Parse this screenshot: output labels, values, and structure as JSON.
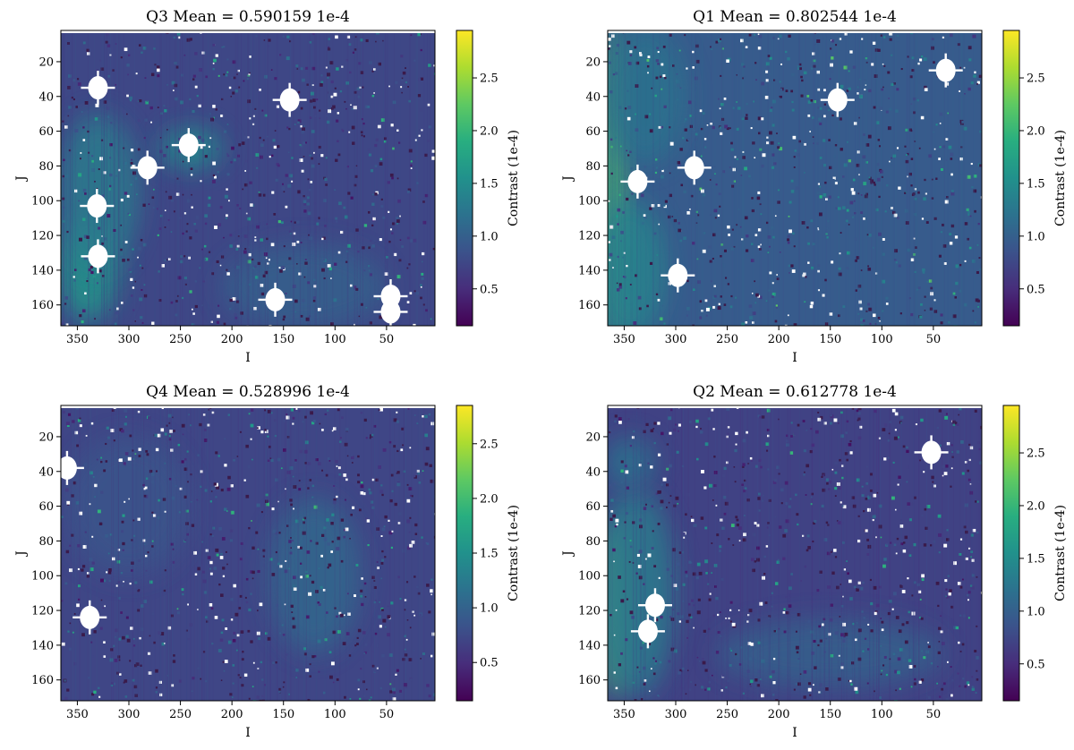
{
  "colormap": [
    "#440154",
    "#472d7b",
    "#3b528b",
    "#2c728e",
    "#21918c",
    "#28ae80",
    "#5ec962",
    "#addc30",
    "#fde725"
  ],
  "chart_data": [
    {
      "type": "heatmap",
      "title": "Q3 Mean = 0.590159 1e-4",
      "xlabel": "I",
      "ylabel": "J",
      "xlim": [
        366,
        3
      ],
      "ylim": [
        172,
        2
      ],
      "xticks": [
        350,
        300,
        250,
        200,
        150,
        100,
        50
      ],
      "yticks": [
        20,
        40,
        60,
        80,
        100,
        120,
        140,
        160
      ],
      "colorbar": {
        "label": "Contrast (1e-4)",
        "range": [
          0.15,
          2.95
        ],
        "ticks": [
          0.5,
          1.0,
          1.5,
          2.0,
          2.5
        ]
      },
      "mean": 0.590159,
      "background_level": 0.75,
      "bright_regions": [
        {
          "i": 340,
          "j": 140,
          "ri": 30,
          "rj": 30,
          "level": 1.6
        },
        {
          "i": 330,
          "j": 95,
          "ri": 40,
          "rj": 45,
          "level": 1.3
        },
        {
          "i": 240,
          "j": 70,
          "ri": 30,
          "rj": 12,
          "level": 1.5
        },
        {
          "i": 130,
          "j": 150,
          "ri": 80,
          "rj": 25,
          "level": 1.0
        }
      ],
      "masked_sources": [
        {
          "i": 330,
          "j": 35
        },
        {
          "i": 144,
          "j": 42
        },
        {
          "i": 242,
          "j": 68
        },
        {
          "i": 282,
          "j": 81
        },
        {
          "i": 331,
          "j": 103
        },
        {
          "i": 330,
          "j": 132
        },
        {
          "i": 158,
          "j": 157
        },
        {
          "i": 46,
          "j": 155
        },
        {
          "i": 46,
          "j": 164
        }
      ]
    },
    {
      "type": "heatmap",
      "title": "Q1 Mean = 0.802544 1e-4",
      "xlabel": "I",
      "ylabel": "J",
      "xlim": [
        366,
        3
      ],
      "ylim": [
        172,
        2
      ],
      "xticks": [
        350,
        300,
        250,
        200,
        150,
        100,
        50
      ],
      "yticks": [
        20,
        40,
        60,
        80,
        100,
        120,
        140,
        160
      ],
      "colorbar": {
        "label": "Contrast (1e-4)",
        "range": [
          0.15,
          2.95
        ],
        "ticks": [
          0.5,
          1.0,
          1.5,
          2.0,
          2.5
        ]
      },
      "mean": 0.802544,
      "background_level": 0.95,
      "bright_regions": [
        {
          "i": 362,
          "j": 90,
          "ri": 12,
          "rj": 90,
          "level": 2.1
        },
        {
          "i": 345,
          "j": 140,
          "ri": 35,
          "rj": 40,
          "level": 1.4
        },
        {
          "i": 330,
          "j": 40,
          "ri": 40,
          "rj": 40,
          "level": 1.2
        }
      ],
      "masked_sources": [
        {
          "i": 38,
          "j": 25
        },
        {
          "i": 143,
          "j": 42
        },
        {
          "i": 282,
          "j": 81
        },
        {
          "i": 337,
          "j": 89
        },
        {
          "i": 298,
          "j": 143
        }
      ]
    },
    {
      "type": "heatmap",
      "title": "Q4 Mean = 0.528996 1e-4",
      "xlabel": "I",
      "ylabel": "J",
      "xlim": [
        366,
        3
      ],
      "ylim": [
        172,
        2
      ],
      "xticks": [
        350,
        300,
        250,
        200,
        150,
        100,
        50
      ],
      "yticks": [
        20,
        40,
        60,
        80,
        100,
        120,
        140,
        160
      ],
      "colorbar": {
        "label": "Contrast (1e-4)",
        "range": [
          0.15,
          2.85
        ],
        "ticks": [
          0.5,
          1.0,
          1.5,
          2.0,
          2.5
        ]
      },
      "mean": 0.528996,
      "background_level": 0.72,
      "bright_regions": [
        {
          "i": 120,
          "j": 100,
          "ri": 45,
          "rj": 45,
          "level": 1.05
        },
        {
          "i": 300,
          "j": 60,
          "ri": 60,
          "rj": 40,
          "level": 0.85
        }
      ],
      "masked_sources": [
        {
          "i": 360,
          "j": 38
        },
        {
          "i": 338,
          "j": 124
        }
      ]
    },
    {
      "type": "heatmap",
      "title": "Q2 Mean = 0.612778 1e-4",
      "xlabel": "I",
      "ylabel": "J",
      "xlim": [
        366,
        3
      ],
      "ylim": [
        172,
        2
      ],
      "xticks": [
        350,
        300,
        250,
        200,
        150,
        100,
        50
      ],
      "yticks": [
        20,
        40,
        60,
        80,
        100,
        120,
        140,
        160
      ],
      "colorbar": {
        "label": "Contrast (1e-4)",
        "range": [
          0.15,
          2.95
        ],
        "ticks": [
          0.5,
          1.0,
          1.5,
          2.0,
          2.5
        ]
      },
      "mean": 0.612778,
      "background_level": 0.7,
      "bright_regions": [
        {
          "i": 360,
          "j": 120,
          "ri": 12,
          "rj": 50,
          "level": 2.2
        },
        {
          "i": 340,
          "j": 110,
          "ri": 40,
          "rj": 60,
          "level": 1.3
        },
        {
          "i": 345,
          "j": 35,
          "ri": 25,
          "rj": 15,
          "level": 1.2
        },
        {
          "i": 150,
          "j": 145,
          "ri": 110,
          "rj": 20,
          "level": 1.0
        }
      ],
      "masked_sources": [
        {
          "i": 52,
          "j": 29
        },
        {
          "i": 320,
          "j": 117
        },
        {
          "i": 327,
          "j": 132
        }
      ]
    }
  ]
}
